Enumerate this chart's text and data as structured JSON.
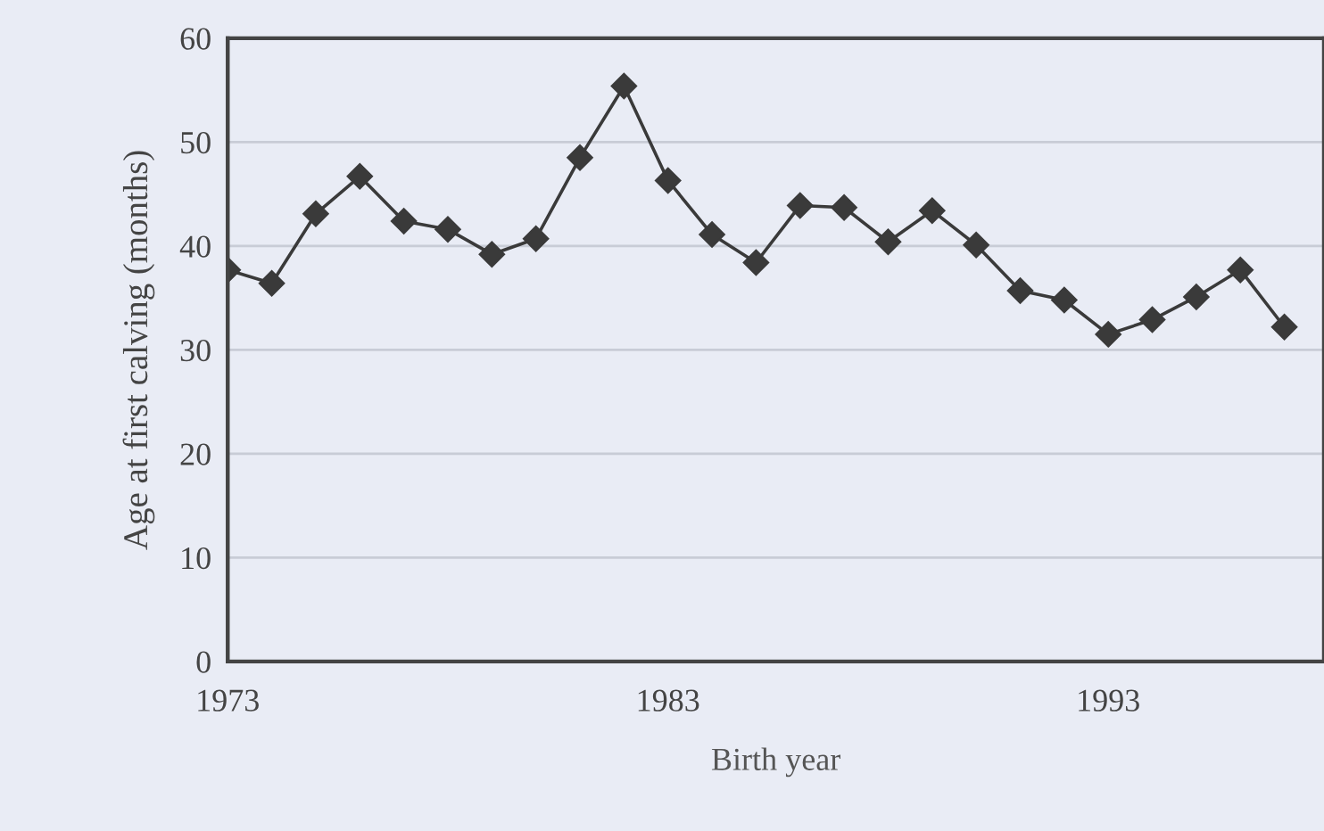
{
  "chart_data": {
    "type": "line",
    "xlabel": "Birth year",
    "ylabel": "Age at first calving (months)",
    "x": [
      1973,
      1974,
      1975,
      1976,
      1977,
      1978,
      1979,
      1980,
      1981,
      1982,
      1983,
      1984,
      1985,
      1986,
      1987,
      1988,
      1989,
      1990,
      1991,
      1992,
      1993,
      1994,
      1995,
      1996,
      1997
    ],
    "series": [
      {
        "color": "#3a3a3a",
        "values": [
          37.7,
          36.4,
          43.1,
          46.7,
          42.4,
          41.6,
          39.2,
          40.7,
          48.5,
          55.4,
          46.3,
          41.1,
          38.4,
          43.9,
          43.7,
          40.4,
          43.4,
          40.1,
          35.7,
          34.8,
          31.5,
          32.9,
          35.1,
          37.7,
          32.2
        ]
      }
    ],
    "xlim": [
      1973,
      1997.9
    ],
    "xticks": [
      1973,
      1983,
      1993
    ],
    "ylim": [
      0,
      60
    ],
    "yticks": [
      0,
      10,
      20,
      30,
      40,
      50,
      60
    ],
    "grid": "y",
    "marker": "diamond",
    "line_style": "solid"
  }
}
